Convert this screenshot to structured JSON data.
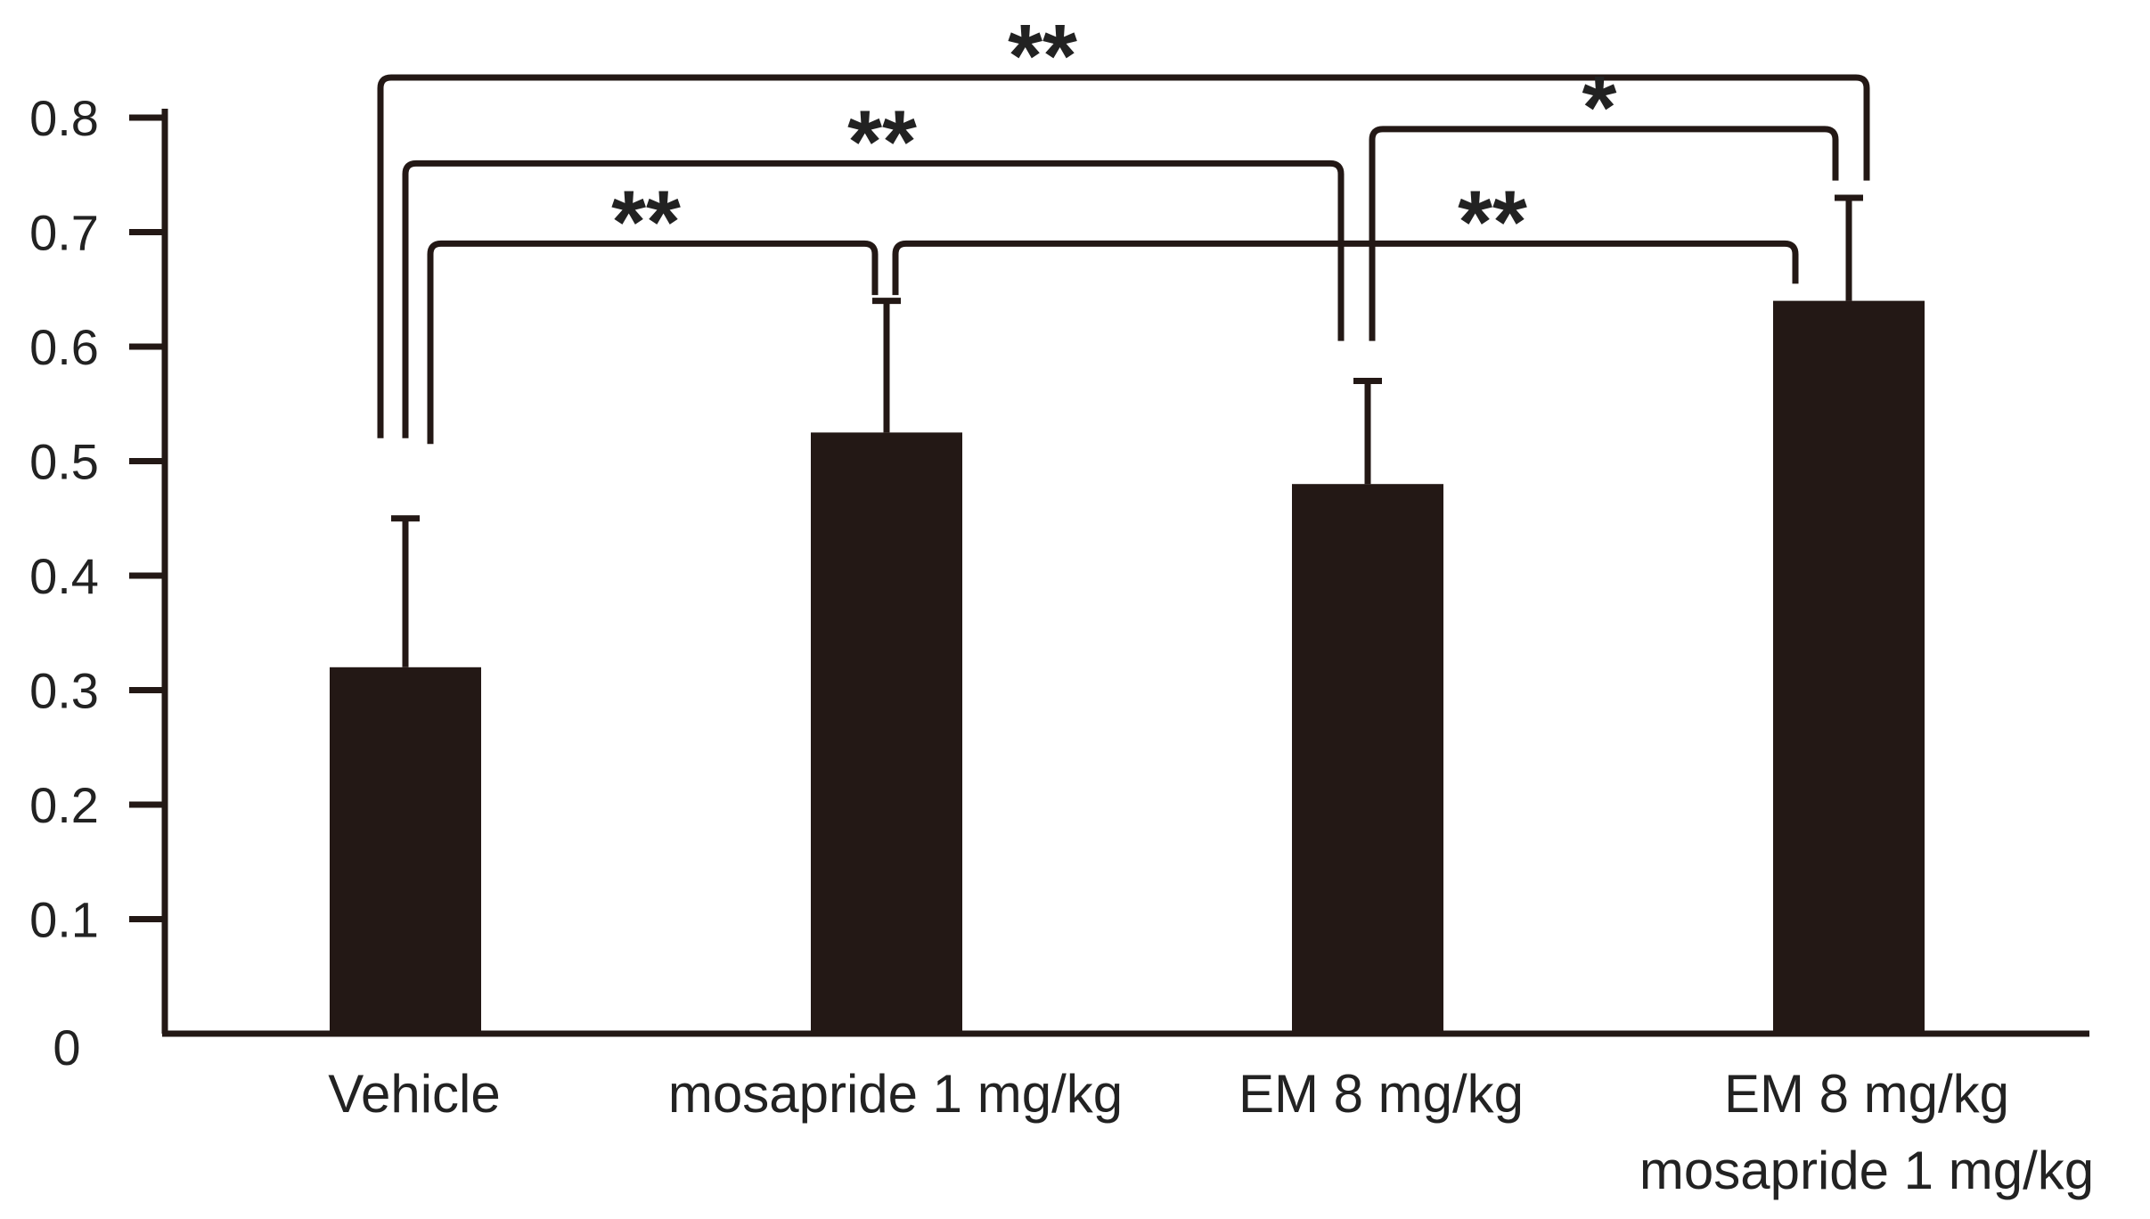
{
  "chart_data": {
    "type": "bar",
    "title": "",
    "xlabel": "",
    "ylabel": "",
    "ylim": [
      0,
      0.8
    ],
    "yticks": [
      0,
      0.1,
      0.2,
      0.3,
      0.4,
      0.5,
      0.6,
      0.7,
      0.8
    ],
    "ytick_labels": [
      "0",
      "0.1",
      "0.2",
      "0.3",
      "0.4",
      "0.5",
      "0.6",
      "0.7",
      "0.8"
    ],
    "grid": false,
    "legend": "none",
    "bar_color": "#231815",
    "categories": [
      [
        "Vehicle"
      ],
      [
        "mosapride 1 mg/kg"
      ],
      [
        "EM 8 mg/kg"
      ],
      [
        "EM 8 mg/kg",
        "mosapride 1 mg/kg"
      ]
    ],
    "values": [
      0.32,
      0.525,
      0.48,
      0.64
    ],
    "errors": [
      0.13,
      0.115,
      0.09,
      0.09
    ],
    "significance": [
      {
        "from": 0,
        "to": 3,
        "label": "**",
        "bar_y": 0.835
      },
      {
        "from": 0,
        "to": 2,
        "label": "**",
        "bar_y": 0.76
      },
      {
        "from": 2,
        "to": 3,
        "label": "*",
        "bar_y": 0.79
      },
      {
        "from": 0,
        "to": 1,
        "label": "**",
        "bar_y": 0.69
      },
      {
        "from": 1,
        "to": 3,
        "label": "**",
        "bar_y": 0.69
      }
    ]
  }
}
